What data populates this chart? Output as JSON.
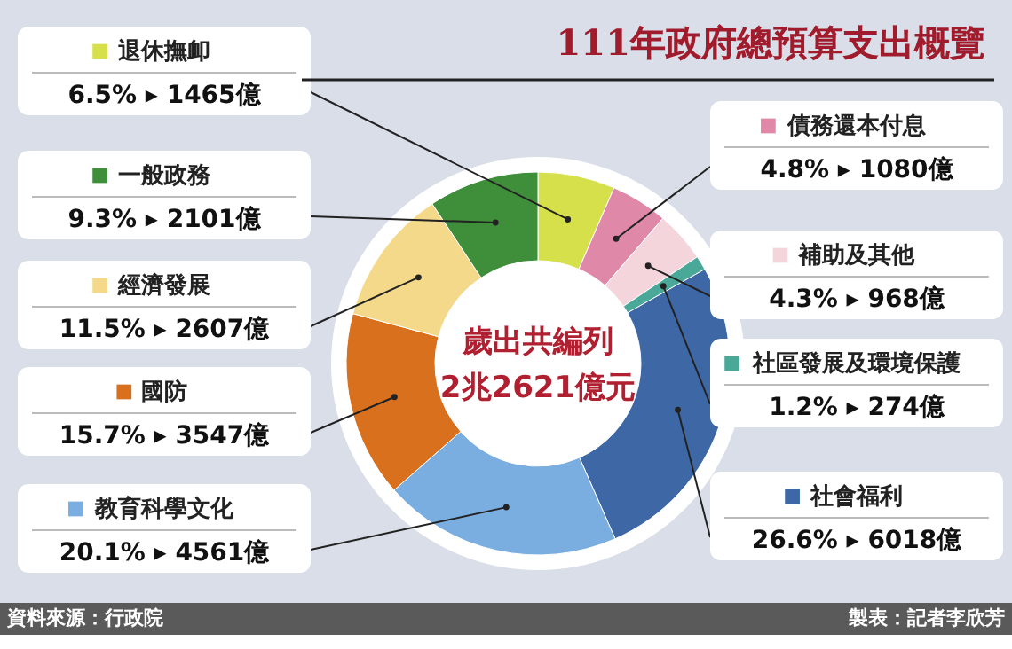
{
  "chart_data": {
    "type": "donut",
    "title": "111年政府總預算支出概覽",
    "categories": [
      "退休撫卹",
      "債務還本付息",
      "補助及其他",
      "社區發展及環境保護",
      "社會福利",
      "教育科學文化",
      "國防",
      "經濟發展",
      "一般政務"
    ],
    "values": [
      6.5,
      4.8,
      4.3,
      1.2,
      26.6,
      20.1,
      15.7,
      11.5,
      9.3
    ],
    "value_labels": [
      "6.5%  ▸ 1465億",
      "4.8%  ▸ 1080億",
      "4.3%  ▸ 968億",
      "1.2%  ▸ 274億",
      "26.6%  ▸ 6018億",
      "20.1%  ▸ 4561億",
      "15.7%  ▸ 3547億",
      "11.5%  ▸ 2607億",
      "9.3%  ▸ 2101億"
    ],
    "colors": [
      "#d6e04a",
      "#e088a8",
      "#f5d5dc",
      "#4aa898",
      "#3d67a5",
      "#7aaee0",
      "#d8701e",
      "#f5d98a",
      "#3f8f3a"
    ],
    "annotations": [
      "歲出共編列",
      "2兆2621億元",
      "資料來源：行政院",
      "製表：記者李欣芳"
    ],
    "legend": "left"
  }
}
